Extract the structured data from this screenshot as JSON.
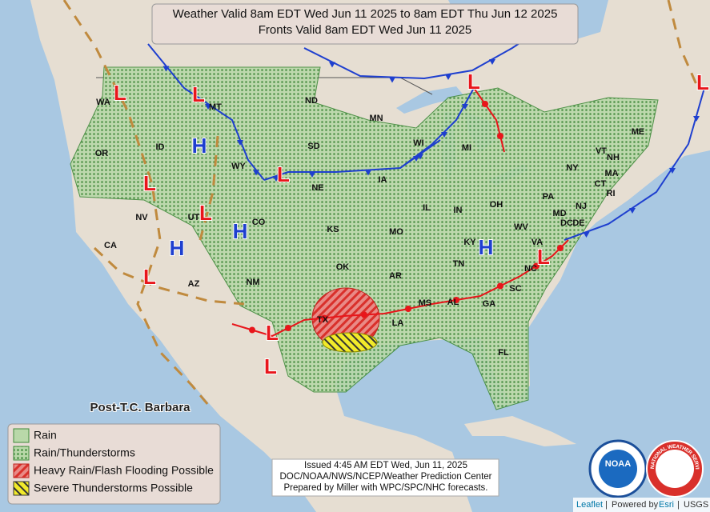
{
  "header": {
    "lines": [
      "Weather Valid 8am EDT Wed Jun 11 2025 to 8am EDT Thu Jun 12 2025",
      "Fronts Valid 8am EDT Wed Jun 11 2025"
    ]
  },
  "states": [
    "WA",
    "MT",
    "ND",
    "MN",
    "WI",
    "MI",
    "ME",
    "OR",
    "ID",
    "WY",
    "SD",
    "NE",
    "IA",
    "VT",
    "NH",
    "NY",
    "MA",
    "CT",
    "RI",
    "PA",
    "NJ",
    "IL",
    "IN",
    "OH",
    "MD",
    "DC",
    "DE",
    "NV",
    "UT",
    "CO",
    "KS",
    "MO",
    "KY",
    "WV",
    "VA",
    "CA",
    "AZ",
    "NM",
    "OK",
    "AR",
    "TN",
    "NC",
    "SC",
    "MS",
    "AL",
    "GA",
    "LA",
    "TX",
    "FL"
  ],
  "pressure_centers": [
    {
      "label": "L",
      "color": "#e8161b"
    },
    {
      "label": "L",
      "color": "#e8161b"
    },
    {
      "label": "H",
      "color": "#1e3fcf"
    },
    {
      "label": "L",
      "color": "#e8161b"
    },
    {
      "label": "L",
      "color": "#e8161b"
    },
    {
      "label": "H",
      "color": "#1e3fcf"
    },
    {
      "label": "H",
      "color": "#1e3fcf"
    },
    {
      "label": "L",
      "color": "#e8161b"
    },
    {
      "label": "L",
      "color": "#e8161b"
    },
    {
      "label": "L",
      "color": "#e8161b"
    },
    {
      "label": "L",
      "color": "#e8161b"
    },
    {
      "label": "H",
      "color": "#1e3fcf"
    },
    {
      "label": "L",
      "color": "#e8161b"
    },
    {
      "label": "L",
      "color": "#e8161b"
    },
    {
      "label": "L",
      "color": "#e8161b"
    }
  ],
  "annotation": "Post-T.C. Barbara",
  "legend": [
    "Rain",
    "Rain/Thunderstorms",
    "Heavy Rain/Flash Flooding Possible",
    "Severe Thunderstorms Possible"
  ],
  "issued": [
    "Issued  4:45 AM EDT  Wed, Jun 11, 2025",
    "DOC/NOAA/NWS/NCEP/Weather Prediction Center",
    "Prepared by Miller with WPC/SPC/NHC forecasts."
  ],
  "logos": [
    "NOAA",
    "NATIONAL WEATHER SERVICE"
  ],
  "attribution": {
    "leaflet": "Leaflet",
    "separator": "|",
    "powered_by": "Powered by",
    "esri": "Esri",
    "usgs": "USGS"
  }
}
